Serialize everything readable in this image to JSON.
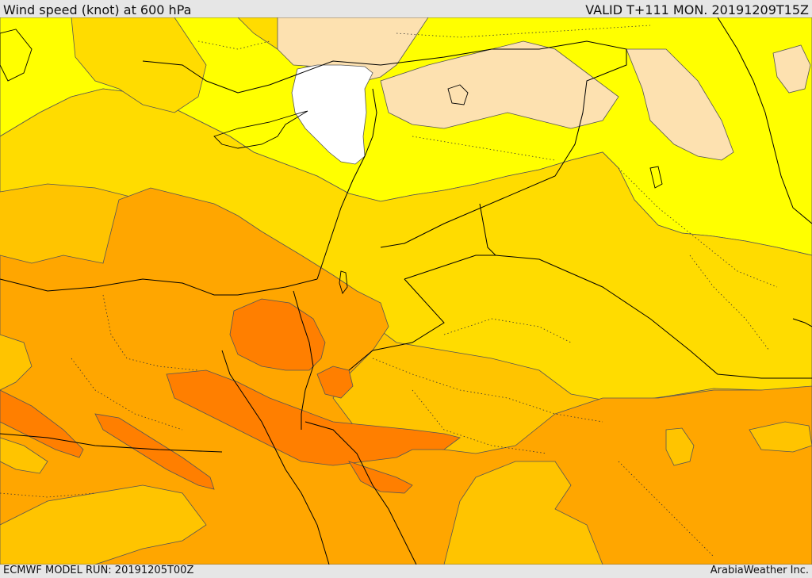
{
  "header": {
    "title": "Wind speed (knot) at 600 hPa",
    "valid": "VALID T+111 MON. 20191209T15Z"
  },
  "footer": {
    "model_run": "ECMWF MODEL RUN: 20191205T00Z",
    "brand": "ArabiaWeather Inc."
  },
  "colors": {
    "white_band": "#ffffff",
    "pale_band": "#fde1b0",
    "yellow_band": "#ffff00",
    "gold_band": "#ffdc00",
    "amber_band": "#ffc400",
    "orange_band": "#ffa600",
    "deep_orange_band": "#ff7f00",
    "boundary_line": "#000000",
    "contour_line": "#555555"
  }
}
